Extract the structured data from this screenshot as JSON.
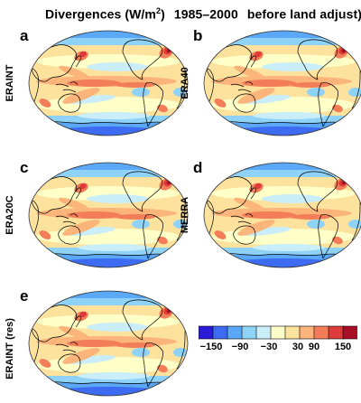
{
  "title": {
    "main": "Divergences (W/m",
    "sup": "2",
    "period": "1985–2000",
    "note": "before land adjust)"
  },
  "panels": [
    {
      "letter": "a",
      "label": "ERAINT"
    },
    {
      "letter": "b",
      "label": "ERA40"
    },
    {
      "letter": "c",
      "label": "ERA20C"
    },
    {
      "letter": "d",
      "label": "MERRA"
    },
    {
      "letter": "e",
      "label": "ERAINT (res)"
    }
  ],
  "colorbar": {
    "colors": [
      "#2b1ad6",
      "#3d6cf2",
      "#5aa8f7",
      "#8fd2f7",
      "#c9eefa",
      "#ffffc8",
      "#fde29e",
      "#fbb57a",
      "#f27d58",
      "#dc3b39",
      "#a80f25"
    ],
    "tick_labels": [
      "−150",
      "−90",
      "−30",
      "30",
      "90",
      "150"
    ]
  }
}
